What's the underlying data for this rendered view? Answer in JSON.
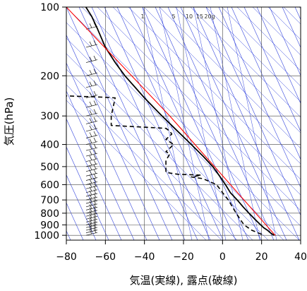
{
  "chart_data": {
    "type": "line",
    "subtype": "skew-T log-P diagram",
    "xlabel": "気温(実線), 露点(破線)",
    "ylabel": "気圧(hPa)",
    "xlim": [
      -80,
      40
    ],
    "ylim": [
      1050,
      100
    ],
    "y_scale": "log",
    "x_ticks": [
      "−80",
      "−60",
      "−40",
      "−20",
      "0",
      "20",
      "40"
    ],
    "x_tick_values": [
      -80,
      -60,
      -40,
      -20,
      0,
      20,
      40
    ],
    "y_ticks": [
      "100",
      "200",
      "300",
      "400",
      "500",
      "600",
      "700",
      "800",
      "900",
      "1000"
    ],
    "y_tick_values": [
      100,
      200,
      300,
      400,
      500,
      600,
      700,
      800,
      900,
      1000
    ],
    "mixing_ratio_labels": [
      "1",
      "5",
      "10",
      "15",
      "20g"
    ],
    "colors": {
      "temperature": "#000000",
      "dewpoint": "#000000",
      "reference_adiabat": "#ff0000",
      "background_lines": "#3344dd",
      "grid": "#444444"
    },
    "series": [
      {
        "style": "solid",
        "points": [
          [
            1000,
            26.5
          ],
          [
            975,
            24.5
          ],
          [
            950,
            23
          ],
          [
            925,
            21
          ],
          [
            900,
            19.5
          ],
          [
            850,
            16.5
          ],
          [
            800,
            13.5
          ],
          [
            750,
            10.5
          ],
          [
            700,
            7.5
          ],
          [
            650,
            4
          ],
          [
            600,
            1.5
          ],
          [
            550,
            -1.5
          ],
          [
            500,
            -5
          ],
          [
            450,
            -10
          ],
          [
            400,
            -16
          ],
          [
            350,
            -23
          ],
          [
            300,
            -31
          ],
          [
            250,
            -40
          ],
          [
            200,
            -50
          ],
          [
            175,
            -55
          ],
          [
            150,
            -60
          ],
          [
            125,
            -64
          ],
          [
            110,
            -67
          ],
          [
            100,
            -70
          ]
        ]
      },
      {
        "style": "dashed",
        "points": [
          [
            990,
            20
          ],
          [
            970,
            17.5
          ],
          [
            950,
            15
          ],
          [
            925,
            13
          ],
          [
            900,
            11
          ],
          [
            850,
            9
          ],
          [
            800,
            7
          ],
          [
            750,
            5
          ],
          [
            700,
            3
          ],
          [
            650,
            0
          ],
          [
            600,
            -3
          ],
          [
            565,
            -10
          ],
          [
            555,
            -16
          ],
          [
            545,
            -11
          ],
          [
            540,
            -23
          ],
          [
            530,
            -29
          ],
          [
            470,
            -29
          ],
          [
            440,
            -27
          ],
          [
            430,
            -29
          ],
          [
            400,
            -25
          ],
          [
            380,
            -29
          ],
          [
            360,
            -26
          ],
          [
            350,
            -27
          ],
          [
            340,
            -29
          ],
          [
            330,
            -57
          ],
          [
            300,
            -57
          ],
          [
            250,
            -55
          ],
          [
            248,
            -62
          ],
          [
            245,
            -80
          ]
        ]
      },
      {
        "style": "solid-red",
        "points": [
          [
            100,
            -80
          ],
          [
            300,
            -27
          ],
          [
            1000,
            27
          ]
        ]
      }
    ],
    "wind_barbs": true
  }
}
